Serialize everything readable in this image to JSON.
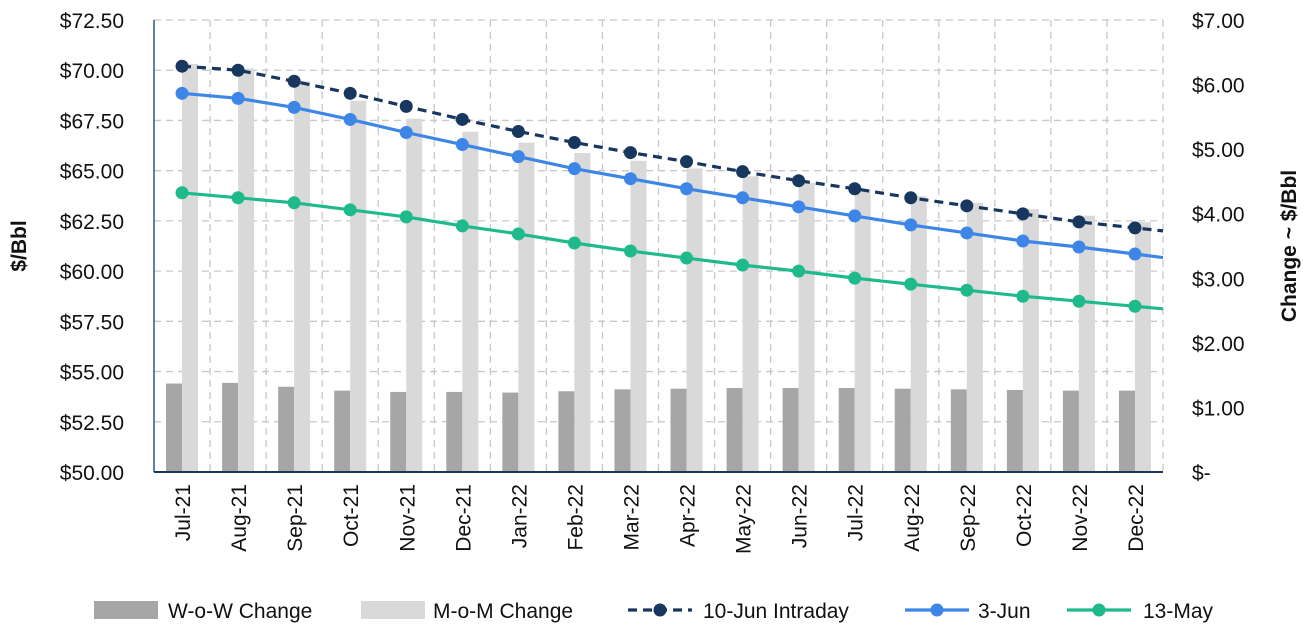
{
  "chart_data": {
    "type": "bar",
    "categories": [
      "Jul-21",
      "Aug-21",
      "Sep-21",
      "Oct-21",
      "Nov-21",
      "Dec-21",
      "Jan-22",
      "Feb-22",
      "Mar-22",
      "Apr-22",
      "May-22",
      "Jun-22",
      "Jul-22",
      "Aug-22",
      "Sep-22",
      "Oct-22",
      "Nov-22",
      "Dec-22"
    ],
    "ylabel_left": "$/Bbl",
    "ylabel_right": "Change ~ $/Bbl",
    "ylim_left": [
      50,
      72.5
    ],
    "ylim_right": [
      0,
      7
    ],
    "yticks_left": [
      "$50.00",
      "$52.50",
      "$55.00",
      "$57.50",
      "$60.00",
      "$62.50",
      "$65.00",
      "$67.50",
      "$70.00",
      "$72.50"
    ],
    "yticks_right": [
      "$-",
      "$1.00",
      "$2.00",
      "$3.00",
      "$4.00",
      "$5.00",
      "$6.00",
      "$7.00"
    ],
    "grid": true,
    "legend_position": "bottom",
    "series": [
      {
        "name": "W-o-W Change",
        "kind": "bar",
        "axis": "right",
        "color": "#a6a6a6",
        "values": [
          1.37,
          1.38,
          1.32,
          1.26,
          1.24,
          1.24,
          1.23,
          1.25,
          1.28,
          1.29,
          1.3,
          1.3,
          1.3,
          1.29,
          1.28,
          1.27,
          1.26,
          1.26
        ]
      },
      {
        "name": "M-o-M Change",
        "kind": "bar",
        "axis": "right",
        "color": "#d9d9d9",
        "values": [
          6.32,
          6.25,
          6.05,
          5.75,
          5.47,
          5.27,
          5.1,
          4.94,
          4.82,
          4.7,
          4.58,
          4.48,
          4.38,
          4.27,
          4.17,
          4.07,
          3.97,
          3.87
        ]
      },
      {
        "name": "10-Jun Intraday",
        "kind": "line",
        "dashed": true,
        "axis": "left",
        "color": "#17375e",
        "values": [
          70.2,
          70.0,
          69.45,
          68.85,
          68.2,
          67.55,
          66.95,
          66.4,
          65.9,
          65.45,
          64.95,
          64.5,
          64.1,
          63.65,
          63.25,
          62.85,
          62.45,
          62.15
        ]
      },
      {
        "name": "3-Jun",
        "kind": "line",
        "axis": "left",
        "color": "#3d86e8",
        "values": [
          68.85,
          68.6,
          68.15,
          67.55,
          66.9,
          66.3,
          65.7,
          65.1,
          64.6,
          64.1,
          63.65,
          63.2,
          62.75,
          62.3,
          61.9,
          61.5,
          61.2,
          60.85
        ]
      },
      {
        "name": "13-May",
        "kind": "line",
        "axis": "left",
        "color": "#1fba8c",
        "values": [
          63.9,
          63.65,
          63.4,
          63.05,
          62.7,
          62.25,
          61.85,
          61.4,
          61.0,
          60.65,
          60.3,
          60.0,
          59.65,
          59.35,
          59.05,
          58.75,
          58.5,
          58.25
        ]
      }
    ]
  }
}
